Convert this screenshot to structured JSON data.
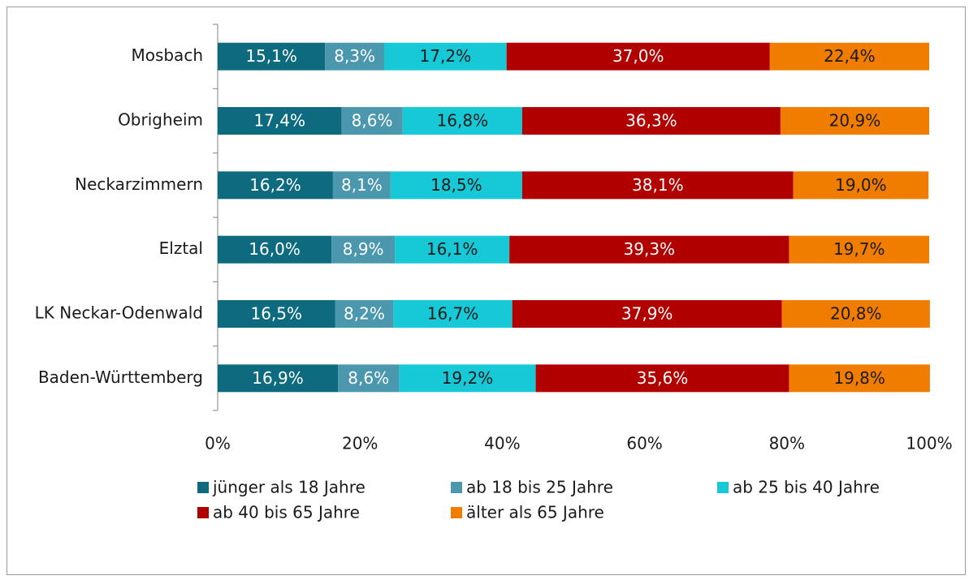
{
  "chart_data": {
    "type": "stacked_barh",
    "categories": [
      "Mosbach",
      "Obrigheim",
      "Neckarzimmern",
      "Elztal",
      "LK Neckar-Odenwald",
      "Baden-Württemberg"
    ],
    "series": [
      {
        "name": "jünger als 18 Jahre",
        "color": "#0e6b7f",
        "label_color": "#ffffff",
        "values": [
          15.1,
          17.4,
          16.2,
          16.0,
          16.5,
          16.9
        ],
        "value_labels": [
          "15,1%",
          "17,4%",
          "16,2%",
          "16,0%",
          "16,5%",
          "16,9%"
        ]
      },
      {
        "name": "ab 18 bis 25 Jahre",
        "color": "#4a97ae",
        "label_color": "#ffffff",
        "values": [
          8.3,
          8.6,
          8.1,
          8.9,
          8.2,
          8.6
        ],
        "value_labels": [
          "8,3%",
          "8,6%",
          "8,1%",
          "8,9%",
          "8,2%",
          "8,6%"
        ]
      },
      {
        "name": "ab 25 bis 40 Jahre",
        "color": "#17c9d6",
        "label_color": "#1a1a1a",
        "values": [
          17.2,
          16.8,
          18.5,
          16.1,
          16.7,
          19.2
        ],
        "value_labels": [
          "17,2%",
          "16,8%",
          "18,5%",
          "16,1%",
          "16,7%",
          "19,2%"
        ]
      },
      {
        "name": "ab 40 bis 65 Jahre",
        "color": "#b00000",
        "label_color": "#ffffff",
        "values": [
          37.0,
          36.3,
          38.1,
          39.3,
          37.9,
          35.6
        ],
        "value_labels": [
          "37,0%",
          "36,3%",
          "38,1%",
          "39,3%",
          "37,9%",
          "35,6%"
        ]
      },
      {
        "name": "älter als 65 Jahre",
        "color": "#f07d00",
        "label_color": "#1a1a1a",
        "values": [
          22.4,
          20.9,
          19.0,
          19.7,
          20.8,
          19.8
        ],
        "value_labels": [
          "22,4%",
          "20,9%",
          "19,0%",
          "19,7%",
          "20,8%",
          "19,8%"
        ]
      }
    ],
    "xlim": [
      0,
      100
    ],
    "xticks": [
      {
        "value": 0,
        "label": "0%"
      },
      {
        "value": 20,
        "label": "20%"
      },
      {
        "value": 40,
        "label": "40%"
      },
      {
        "value": 60,
        "label": "60%"
      },
      {
        "value": 80,
        "label": "80%"
      },
      {
        "value": 100,
        "label": "100%"
      }
    ],
    "grid": false
  }
}
